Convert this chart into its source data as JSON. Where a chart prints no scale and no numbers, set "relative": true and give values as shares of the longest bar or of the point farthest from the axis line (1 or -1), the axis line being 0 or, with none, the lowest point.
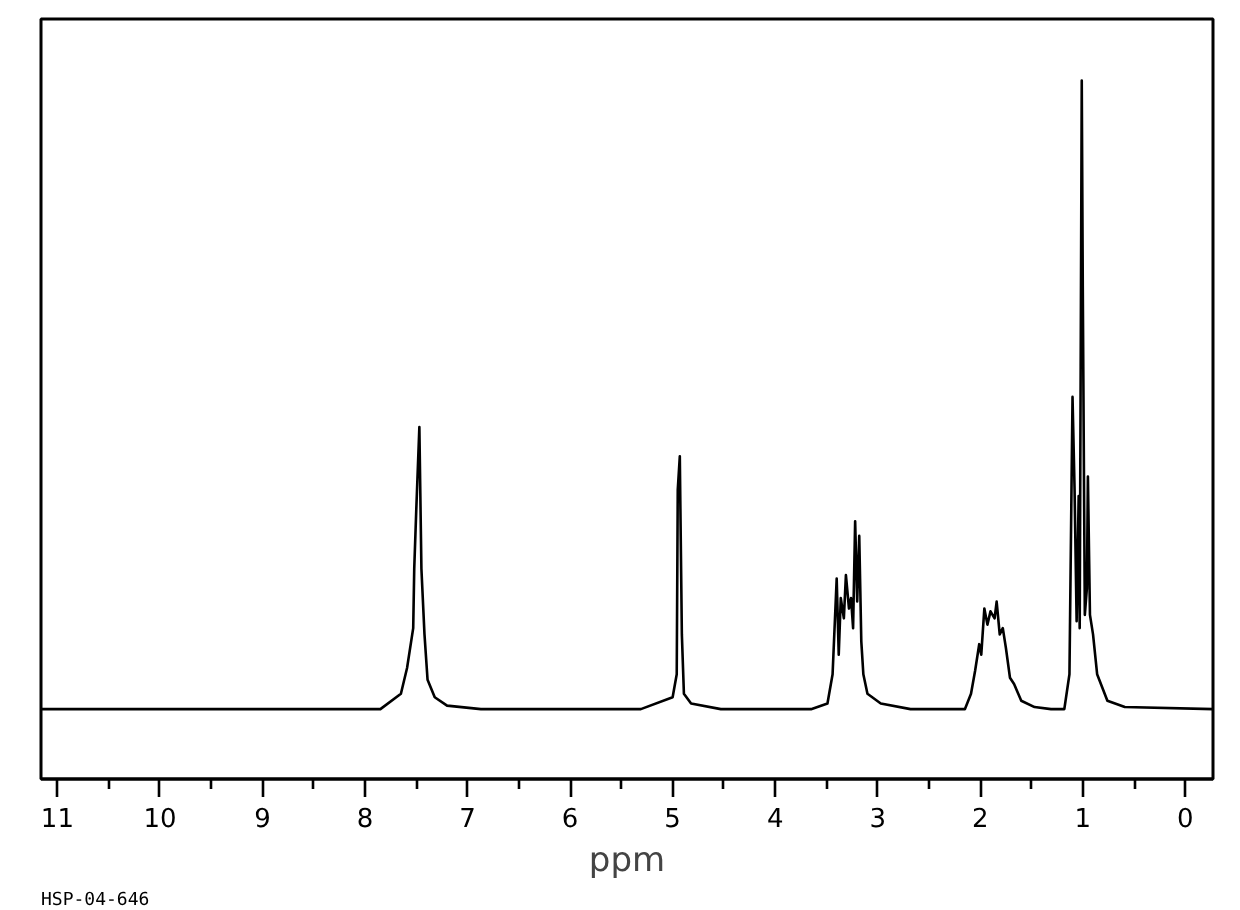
{
  "chart_data": {
    "type": "line",
    "relative": true,
    "xlabel": "ppm",
    "annotations": [
      "HSP-04-646"
    ],
    "x": [
      11.16,
      8.63,
      7.85,
      7.65,
      7.59,
      7.53,
      7.52,
      7.5,
      7.47,
      7.45,
      7.42,
      7.39,
      7.32,
      7.2,
      6.87,
      5.31,
      5.0,
      4.96,
      4.95,
      4.93,
      4.91,
      4.89,
      4.82,
      4.53,
      3.65,
      3.49,
      3.44,
      3.4,
      3.38,
      3.36,
      3.33,
      3.31,
      3.28,
      3.26,
      3.24,
      3.22,
      3.2,
      3.18,
      3.16,
      3.14,
      3.1,
      2.97,
      2.68,
      2.15,
      2.09,
      2.05,
      2.01,
      1.99,
      1.96,
      1.93,
      1.9,
      1.86,
      1.84,
      1.81,
      1.78,
      1.75,
      1.71,
      1.67,
      1.6,
      1.47,
      1.31,
      1.18,
      1.13,
      1.1,
      1.08,
      1.06,
      1.04,
      1.03,
      1.01,
      1.0,
      0.98,
      0.96,
      0.95,
      0.93,
      0.9,
      0.86,
      0.76,
      0.59,
      -0.27
    ],
    "series": [
      {
        "color": "#000000",
        "values": [
          0.1,
          0.1,
          0.1,
          0.122,
          0.159,
          0.216,
          0.301,
          0.386,
          0.504,
          0.301,
          0.207,
          0.142,
          0.117,
          0.105,
          0.1,
          0.1,
          0.117,
          0.15,
          0.414,
          0.462,
          0.207,
          0.122,
          0.108,
          0.1,
          0.1,
          0.108,
          0.15,
          0.287,
          0.178,
          0.259,
          0.23,
          0.292,
          0.244,
          0.259,
          0.216,
          0.369,
          0.254,
          0.348,
          0.197,
          0.15,
          0.122,
          0.108,
          0.1,
          0.1,
          0.122,
          0.155,
          0.193,
          0.178,
          0.244,
          0.221,
          0.24,
          0.23,
          0.254,
          0.207,
          0.216,
          0.188,
          0.145,
          0.136,
          0.112,
          0.103,
          0.1,
          0.1,
          0.15,
          0.547,
          0.414,
          0.226,
          0.405,
          0.216,
          1.0,
          0.707,
          0.235,
          0.273,
          0.433,
          0.235,
          0.207,
          0.15,
          0.112,
          0.103,
          0.1
        ]
      }
    ],
    "xlim": [
      11.16,
      -0.27
    ],
    "xticks": [
      11,
      {
        "value": 10.5,
        "label": null
      },
      10,
      {
        "value": 9.5,
        "label": null
      },
      9,
      {
        "value": 8.5,
        "label": null
      },
      8,
      {
        "value": 7.5,
        "label": null
      },
      7,
      {
        "value": 6.5,
        "label": null
      },
      6,
      {
        "value": 5.5,
        "label": null
      },
      5,
      {
        "value": 4.5,
        "label": null
      },
      4,
      {
        "value": 3.5,
        "label": null
      },
      3,
      {
        "value": 2.5,
        "label": null
      },
      2,
      {
        "value": 1.5,
        "label": null
      },
      1,
      {
        "value": 0.5,
        "label": null
      },
      0
    ]
  }
}
